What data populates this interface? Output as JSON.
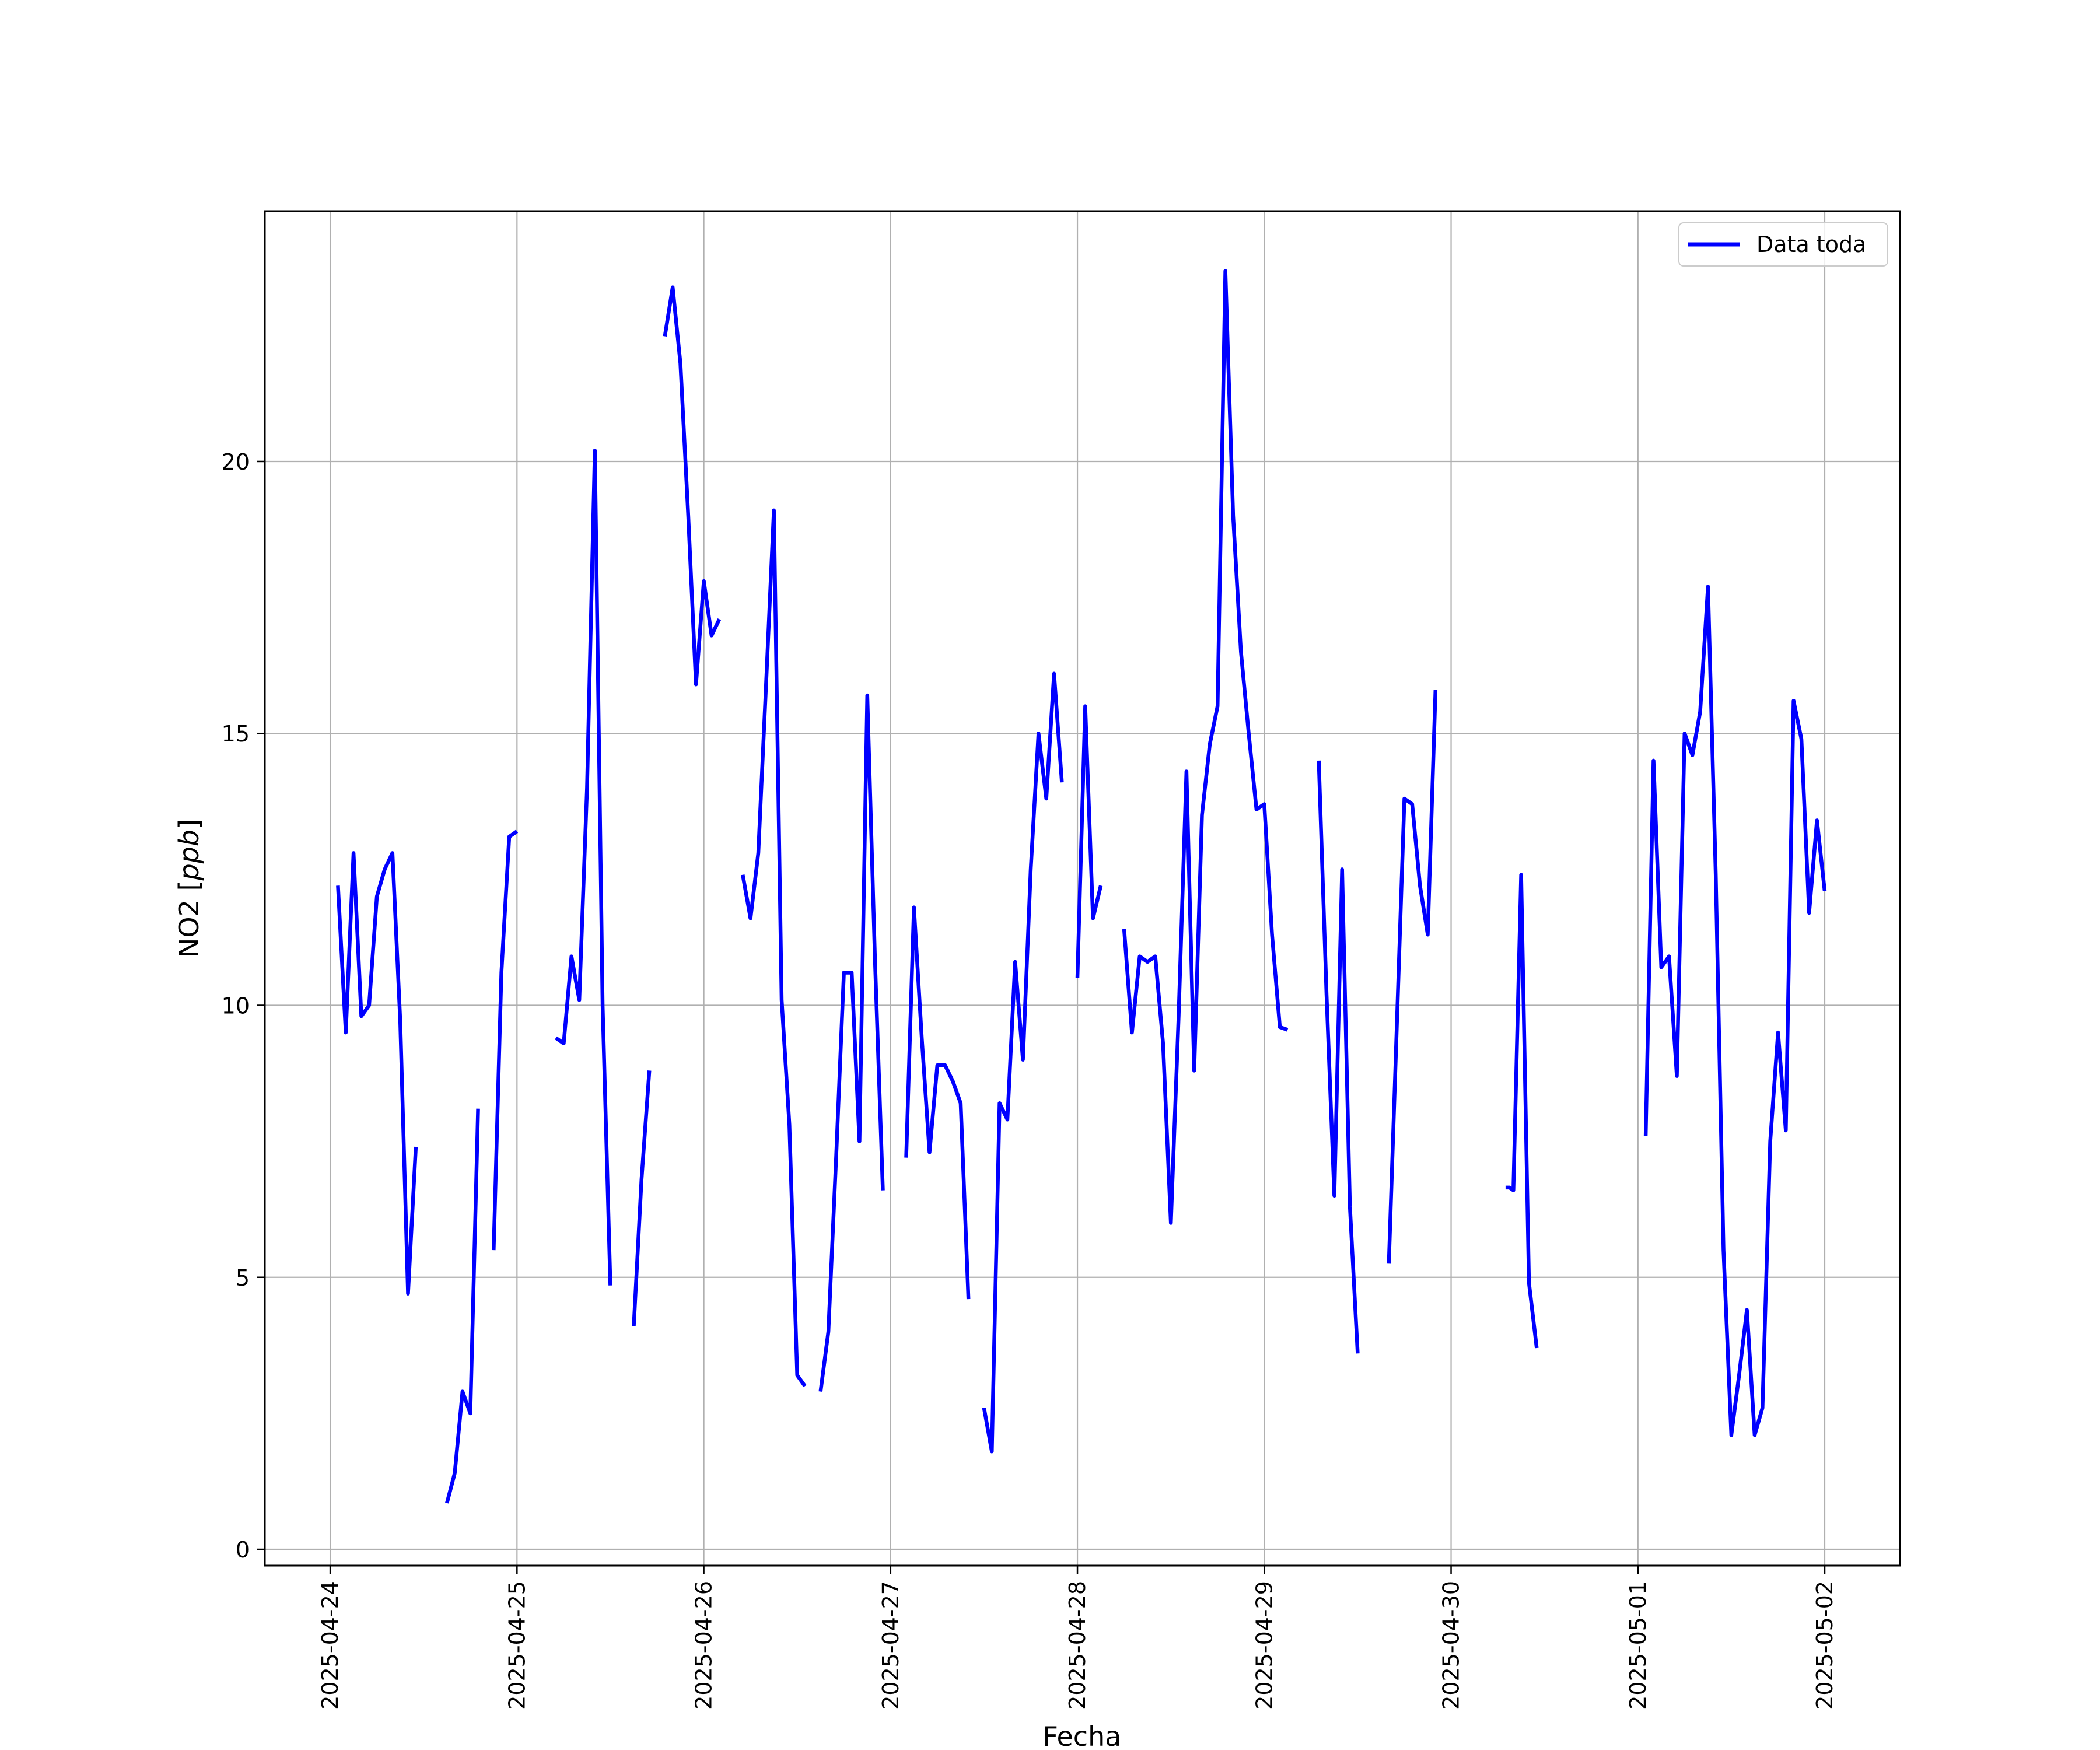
{
  "chart_data": {
    "type": "line",
    "title": "",
    "xlabel": "Fecha",
    "ylabel": "NO2 [ppb]",
    "ylabel_main": "NO2",
    "ylabel_unit": "ppb",
    "xlim": [
      "2025-04-23 15:36",
      "2025-05-02 09:40"
    ],
    "ylim": [
      -0.3,
      24.6
    ],
    "x_ticks": [
      "2025-04-24",
      "2025-04-25",
      "2025-04-26",
      "2025-04-27",
      "2025-04-28",
      "2025-04-29",
      "2025-04-30",
      "2025-05-01",
      "2025-05-02"
    ],
    "y_ticks": [
      0,
      5,
      10,
      15,
      20
    ],
    "y_tick_labels": [
      "0",
      "5",
      "10",
      "15",
      "20"
    ],
    "grid": true,
    "legend_position": "top-right",
    "series": [
      {
        "name": "Data toda",
        "color": "#0000ff",
        "segments": [
          [
            [
              "2025-04-24 01:00",
              12.2
            ],
            [
              "2025-04-24 02:00",
              9.5
            ],
            [
              "2025-04-24 03:00",
              12.8
            ],
            [
              "2025-04-24 04:00",
              9.8
            ],
            [
              "2025-04-24 05:00",
              10.0
            ],
            [
              "2025-04-24 06:00",
              12.0
            ],
            [
              "2025-04-24 07:00",
              12.5
            ],
            [
              "2025-04-24 08:00",
              12.8
            ],
            [
              "2025-04-24 09:00",
              9.7
            ],
            [
              "2025-04-24 10:00",
              4.7
            ],
            [
              "2025-04-24 11:00",
              7.4
            ]
          ],
          [
            [
              "2025-04-24 15:00",
              0.85
            ],
            [
              "2025-04-24 16:00",
              1.4
            ],
            [
              "2025-04-24 17:00",
              2.9
            ],
            [
              "2025-04-24 18:00",
              2.5
            ],
            [
              "2025-04-24 19:00",
              8.1
            ]
          ],
          [
            [
              "2025-04-24 21:00",
              5.5
            ],
            [
              "2025-04-24 22:00",
              10.6
            ],
            [
              "2025-04-24 23:00",
              13.1
            ],
            [
              "2025-04-25 00:00",
              13.2
            ]
          ],
          [
            [
              "2025-04-25 05:00",
              9.4
            ],
            [
              "2025-04-25 06:00",
              9.3
            ],
            [
              "2025-04-25 07:00",
              10.9
            ],
            [
              "2025-04-25 08:00",
              10.1
            ],
            [
              "2025-04-25 09:00",
              14.0
            ],
            [
              "2025-04-25 10:00",
              20.2
            ],
            [
              "2025-04-25 11:00",
              10.0
            ],
            [
              "2025-04-25 12:00",
              4.85
            ]
          ],
          [
            [
              "2025-04-25 15:00",
              4.1
            ],
            [
              "2025-04-25 16:00",
              6.8
            ],
            [
              "2025-04-25 17:00",
              8.8
            ]
          ],
          [
            [
              "2025-04-25 19:00",
              22.3
            ],
            [
              "2025-04-25 20:00",
              23.2
            ],
            [
              "2025-04-25 21:00",
              21.8
            ],
            [
              "2025-04-25 22:00",
              19.0
            ],
            [
              "2025-04-25 23:00",
              15.9
            ],
            [
              "2025-04-26 00:00",
              17.8
            ],
            [
              "2025-04-26 01:00",
              16.8
            ],
            [
              "2025-04-26 02:00",
              17.1
            ]
          ],
          [
            [
              "2025-04-26 05:00",
              12.4
            ],
            [
              "2025-04-26 06:00",
              11.6
            ],
            [
              "2025-04-26 07:00",
              12.8
            ],
            [
              "2025-04-26 08:00",
              15.9
            ],
            [
              "2025-04-26 09:00",
              19.1
            ],
            [
              "2025-04-26 10:00",
              10.1
            ],
            [
              "2025-04-26 11:00",
              7.8
            ],
            [
              "2025-04-26 12:00",
              3.2
            ],
            [
              "2025-04-26 13:00",
              3.0
            ]
          ],
          [
            [
              "2025-04-26 15:00",
              2.9
            ],
            [
              "2025-04-26 16:00",
              4.0
            ],
            [
              "2025-04-26 17:00",
              7.2
            ],
            [
              "2025-04-26 18:00",
              10.6
            ],
            [
              "2025-04-26 19:00",
              10.6
            ],
            [
              "2025-04-26 20:00",
              7.5
            ],
            [
              "2025-04-26 21:00",
              15.7
            ],
            [
              "2025-04-26 22:00",
              10.8
            ],
            [
              "2025-04-26 23:00",
              6.6
            ]
          ],
          [
            [
              "2025-04-27 02:00",
              7.2
            ],
            [
              "2025-04-27 03:00",
              11.8
            ],
            [
              "2025-04-27 04:00",
              9.4
            ],
            [
              "2025-04-27 05:00",
              7.3
            ],
            [
              "2025-04-27 06:00",
              8.9
            ],
            [
              "2025-04-27 07:00",
              8.9
            ],
            [
              "2025-04-27 08:00",
              8.6
            ],
            [
              "2025-04-27 09:00",
              8.2
            ],
            [
              "2025-04-27 10:00",
              4.6
            ]
          ],
          [
            [
              "2025-04-27 12:00",
              2.6
            ],
            [
              "2025-04-27 13:00",
              1.8
            ],
            [
              "2025-04-27 14:00",
              8.2
            ],
            [
              "2025-04-27 15:00",
              7.9
            ],
            [
              "2025-04-27 16:00",
              10.8
            ],
            [
              "2025-04-27 17:00",
              9.0
            ],
            [
              "2025-04-27 18:00",
              12.5
            ],
            [
              "2025-04-27 19:00",
              15.0
            ],
            [
              "2025-04-27 20:00",
              13.8
            ],
            [
              "2025-04-27 21:00",
              16.1
            ],
            [
              "2025-04-27 22:00",
              14.1
            ]
          ],
          [
            [
              "2025-04-28 00:00",
              10.5
            ],
            [
              "2025-04-28 01:00",
              15.5
            ],
            [
              "2025-04-28 02:00",
              11.6
            ],
            [
              "2025-04-28 03:00",
              12.2
            ]
          ],
          [
            [
              "2025-04-28 06:00",
              11.4
            ],
            [
              "2025-04-28 07:00",
              9.5
            ],
            [
              "2025-04-28 08:00",
              10.9
            ],
            [
              "2025-04-28 09:00",
              10.8
            ],
            [
              "2025-04-28 10:00",
              10.9
            ],
            [
              "2025-04-28 11:00",
              9.3
            ],
            [
              "2025-04-28 12:00",
              6.0
            ],
            [
              "2025-04-28 13:00",
              9.8
            ],
            [
              "2025-04-28 14:00",
              14.3
            ],
            [
              "2025-04-28 15:00",
              8.8
            ],
            [
              "2025-04-28 16:00",
              13.5
            ],
            [
              "2025-04-28 17:00",
              14.8
            ],
            [
              "2025-04-28 18:00",
              15.5
            ],
            [
              "2025-04-28 19:00",
              23.5
            ],
            [
              "2025-04-28 20:00",
              19.0
            ],
            [
              "2025-04-28 21:00",
              16.5
            ],
            [
              "2025-04-28 22:00",
              15.0
            ],
            [
              "2025-04-28 23:00",
              13.6
            ],
            [
              "2025-04-29 00:00",
              13.7
            ],
            [
              "2025-04-29 01:00",
              11.3
            ],
            [
              "2025-04-29 02:00",
              9.6
            ],
            [
              "2025-04-29 03:00",
              9.55
            ]
          ],
          [
            [
              "2025-04-29 07:00",
              14.5
            ],
            [
              "2025-04-29 08:00",
              10.2
            ],
            [
              "2025-04-29 09:00",
              6.5
            ],
            [
              "2025-04-29 10:00",
              12.5
            ],
            [
              "2025-04-29 11:00",
              6.3
            ],
            [
              "2025-04-29 12:00",
              3.6
            ]
          ],
          [
            [
              "2025-04-29 16:00",
              5.25
            ],
            [
              "2025-04-29 17:00",
              9.5
            ],
            [
              "2025-04-29 18:00",
              13.8
            ],
            [
              "2025-04-29 19:00",
              13.7
            ],
            [
              "2025-04-29 20:00",
              12.2
            ],
            [
              "2025-04-29 21:00",
              11.3
            ],
            [
              "2025-04-29 22:00",
              15.8
            ]
          ],
          [
            [
              "2025-04-30 07:00",
              6.65
            ],
            [
              "2025-04-30 07:30",
              6.65
            ],
            [
              "2025-04-30 08:00",
              6.6
            ],
            [
              "2025-04-30 09:00",
              12.4
            ],
            [
              "2025-04-30 10:00",
              4.9
            ],
            [
              "2025-04-30 11:00",
              3.7
            ]
          ],
          [
            [
              "2025-05-01 01:00",
              7.6
            ],
            [
              "2025-05-01 02:00",
              14.5
            ],
            [
              "2025-05-01 03:00",
              10.7
            ],
            [
              "2025-05-01 04:00",
              10.9
            ],
            [
              "2025-05-01 05:00",
              8.7
            ],
            [
              "2025-05-01 06:00",
              15.0
            ],
            [
              "2025-05-01 07:00",
              14.6
            ],
            [
              "2025-05-01 08:00",
              15.4
            ],
            [
              "2025-05-01 09:00",
              17.7
            ],
            [
              "2025-05-01 10:00",
              12.4
            ],
            [
              "2025-05-01 11:00",
              5.5
            ],
            [
              "2025-05-01 12:00",
              2.1
            ],
            [
              "2025-05-01 13:00",
              3.2
            ],
            [
              "2025-05-01 14:00",
              4.4
            ],
            [
              "2025-05-01 15:00",
              2.1
            ],
            [
              "2025-05-01 16:00",
              2.6
            ],
            [
              "2025-05-01 17:00",
              7.5
            ],
            [
              "2025-05-01 18:00",
              9.5
            ],
            [
              "2025-05-01 19:00",
              7.7
            ],
            [
              "2025-05-01 20:00",
              15.6
            ],
            [
              "2025-05-01 21:00",
              14.9
            ],
            [
              "2025-05-01 22:00",
              11.7
            ],
            [
              "2025-05-01 23:00",
              13.4
            ],
            [
              "2025-05-02 00:00",
              12.1
            ]
          ]
        ]
      }
    ]
  }
}
